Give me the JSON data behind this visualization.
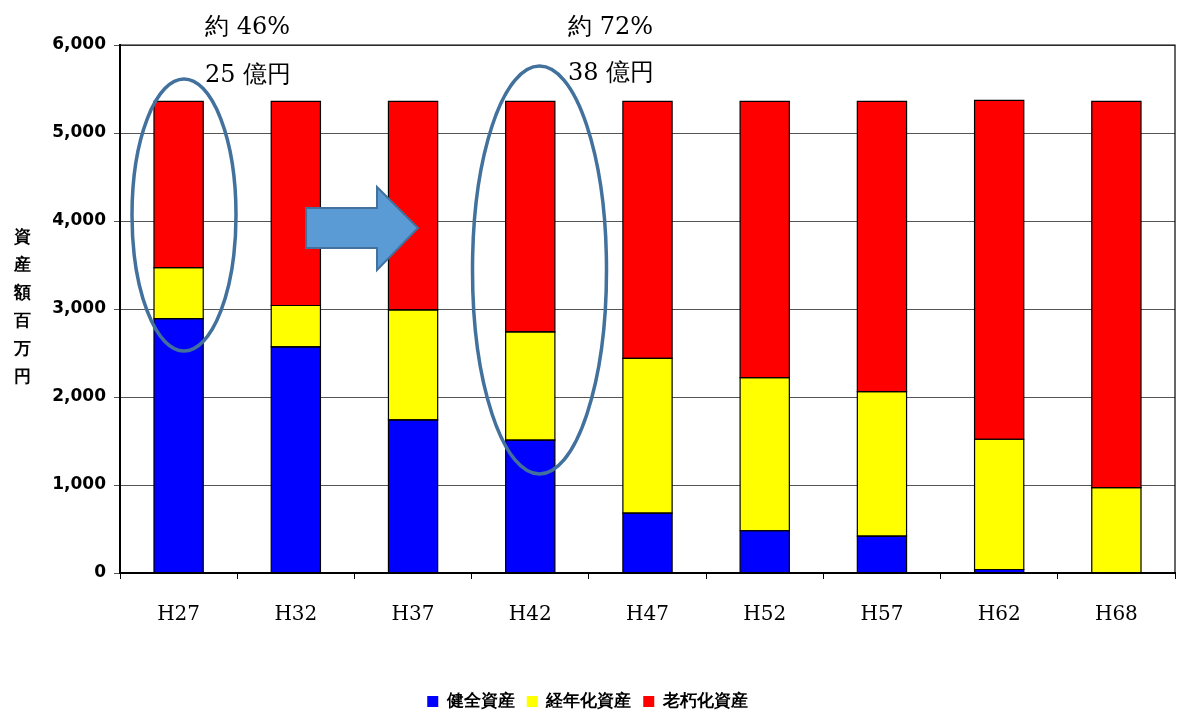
{
  "chart_data": {
    "type": "bar",
    "stacked": true,
    "ylabel": "資産額百万円",
    "categories": [
      "H27",
      "H32",
      "H37",
      "H42",
      "H47",
      "H52",
      "H57",
      "H62",
      "H68"
    ],
    "series": [
      {
        "name": "健全資産",
        "color": "#0000ff",
        "values": [
          2890,
          2570,
          1740,
          1510,
          680,
          480,
          420,
          40,
          0
        ]
      },
      {
        "name": "経年化資産",
        "color": "#ffff00",
        "values": [
          580,
          470,
          1250,
          1230,
          1760,
          1740,
          1640,
          1480,
          970
        ]
      },
      {
        "name": "老朽化資産",
        "color": "#ff0000",
        "values": [
          1890,
          2320,
          2370,
          2620,
          2920,
          3140,
          3300,
          3850,
          4390
        ]
      }
    ],
    "ylim": [
      0,
      6000
    ],
    "yticks": [
      {
        "value": 0,
        "label": "0"
      },
      {
        "value": 1000,
        "label": "1,000"
      },
      {
        "value": 2000,
        "label": "2,000"
      },
      {
        "value": 3000,
        "label": "3,000"
      },
      {
        "value": 4000,
        "label": "4,000"
      },
      {
        "value": 5000,
        "label": "5,000"
      },
      {
        "value": 6000,
        "label": "6,000"
      }
    ],
    "grid": "y",
    "legend": "bottom",
    "annotations": [
      "約 46%",
      "25 億円",
      "約 72%",
      "38 億円"
    ]
  }
}
